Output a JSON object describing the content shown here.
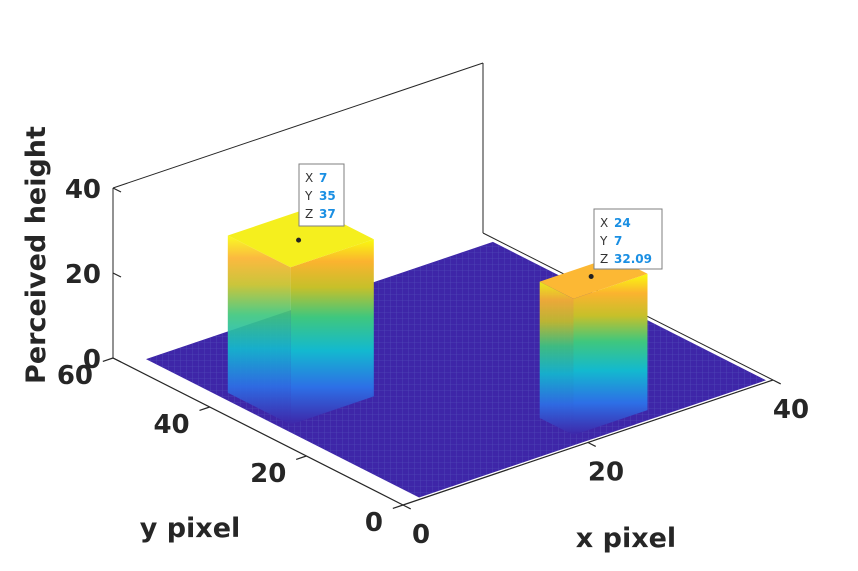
{
  "chart_data": {
    "type": "surface3d",
    "title": "",
    "xlabel": "x pixel",
    "ylabel": "y pixel",
    "zlabel": "Perceived height",
    "xlim": [
      0,
      40
    ],
    "ylim": [
      0,
      60
    ],
    "zlim": [
      0,
      40
    ],
    "x_ticks": [
      "0",
      "20",
      "40"
    ],
    "y_ticks": [
      "0",
      "20",
      "40",
      "60"
    ],
    "z_ticks": [
      "0",
      "20",
      "40"
    ],
    "colormap": "parula",
    "grid": "off",
    "features": [
      {
        "x_range": [
          3,
          12
        ],
        "y_range": [
          29,
          42
        ],
        "height": 37
      },
      {
        "x_range": [
          20,
          28
        ],
        "y_range": [
          3,
          10
        ],
        "height": 32.09
      }
    ],
    "datatips": [
      {
        "x_label": "X",
        "x": "7",
        "y_label": "Y",
        "y": "35",
        "z_label": "Z",
        "z": "37"
      },
      {
        "x_label": "X",
        "x": "24",
        "y_label": "Y",
        "y": "7",
        "z_label": "Z",
        "z": "32.09"
      }
    ]
  }
}
